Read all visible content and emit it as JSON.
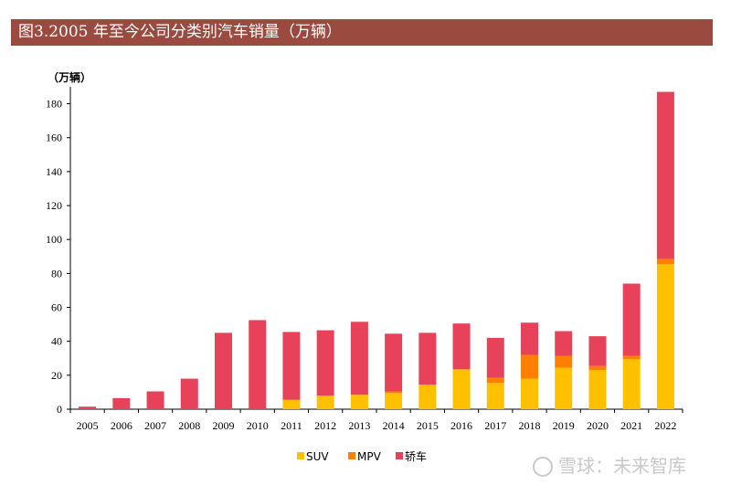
{
  "title": "图3.2005 年至今公司分类别汽车销量（万辆）",
  "watermark": "雪球：未来智库",
  "colors": {
    "title_bg": "#9b4a40",
    "suv": "#ffc000",
    "mpv": "#ff8000",
    "sedan": "#e8425a"
  },
  "chart_data": {
    "type": "bar",
    "stacked": true,
    "unit_label": "（万辆）",
    "categories": [
      "2005",
      "2006",
      "2007",
      "2008",
      "2009",
      "2010",
      "2011",
      "2012",
      "2013",
      "2014",
      "2015",
      "2016",
      "2017",
      "2018",
      "2019",
      "2020",
      "2021",
      "2022"
    ],
    "series": [
      {
        "name": "SUV",
        "color": "#ffc000",
        "values": [
          0,
          0,
          0,
          0,
          0,
          0,
          5.5,
          8,
          8.5,
          9.5,
          14.5,
          23.5,
          15.5,
          18,
          24.5,
          23,
          29.5,
          85.5
        ]
      },
      {
        "name": "MPV",
        "color": "#ff8000",
        "values": [
          0,
          0,
          0,
          0,
          0,
          0,
          0,
          0,
          0,
          1,
          0,
          0,
          3,
          14,
          7,
          2.5,
          2,
          3
        ]
      },
      {
        "name": "轿车",
        "color": "#e8425a",
        "values": [
          1.5,
          6.5,
          10.5,
          18,
          45,
          52.5,
          40,
          38.5,
          43,
          34,
          30.5,
          27,
          23.5,
          19,
          14.5,
          17.5,
          42.5,
          98.5
        ]
      }
    ],
    "yticks": [
      0,
      20,
      40,
      60,
      80,
      100,
      120,
      140,
      160,
      180
    ],
    "ylim": [
      0,
      190
    ],
    "grid": false,
    "legend_position": "bottom"
  }
}
